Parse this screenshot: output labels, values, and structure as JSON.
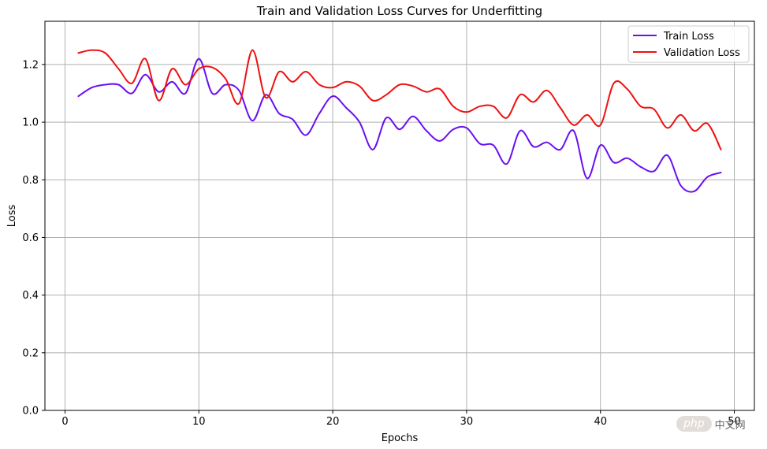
{
  "chart_data": {
    "type": "line",
    "title": "Train and Validation Loss Curves for Underfitting",
    "xlabel": "Epochs",
    "ylabel": "Loss",
    "xlim": [
      -1.5,
      51.5
    ],
    "ylim": [
      0,
      1.35
    ],
    "xticks": [
      0,
      10,
      20,
      30,
      40,
      50
    ],
    "yticks": [
      0.0,
      0.2,
      0.4,
      0.6,
      0.8,
      1.0,
      1.2
    ],
    "xtick_labels": [
      "0",
      "10",
      "20",
      "30",
      "40",
      "50"
    ],
    "ytick_labels": [
      "0.0",
      "0.2",
      "0.4",
      "0.6",
      "0.8",
      "1.0",
      "1.2"
    ],
    "grid": true,
    "legend_position": "top-right",
    "series": [
      {
        "name": "Train Loss",
        "color": "#6a0ff0",
        "x": [
          1,
          2,
          3,
          4,
          5,
          6,
          7,
          8,
          9,
          10,
          11,
          12,
          13,
          14,
          15,
          16,
          17,
          18,
          19,
          20,
          21,
          22,
          23,
          24,
          25,
          26,
          27,
          28,
          29,
          30,
          31,
          32,
          33,
          34,
          35,
          36,
          37,
          38,
          39,
          40,
          41,
          42,
          43,
          44,
          45,
          46,
          47,
          48,
          49
        ],
        "values": [
          1.09,
          1.12,
          1.13,
          1.13,
          1.1,
          1.165,
          1.105,
          1.14,
          1.1,
          1.22,
          1.1,
          1.13,
          1.11,
          1.005,
          1.095,
          1.03,
          1.01,
          0.955,
          1.03,
          1.09,
          1.05,
          1.0,
          0.905,
          1.015,
          0.975,
          1.02,
          0.97,
          0.935,
          0.975,
          0.98,
          0.925,
          0.92,
          0.855,
          0.97,
          0.915,
          0.93,
          0.905,
          0.97,
          0.805,
          0.92,
          0.86,
          0.875,
          0.845,
          0.83,
          0.885,
          0.78,
          0.76,
          0.81,
          0.825
        ]
      },
      {
        "name": "Validation Loss",
        "color": "#ee1111",
        "x": [
          1,
          2,
          3,
          4,
          5,
          6,
          7,
          8,
          9,
          10,
          11,
          12,
          13,
          14,
          15,
          16,
          17,
          18,
          19,
          20,
          21,
          22,
          23,
          24,
          25,
          26,
          27,
          28,
          29,
          30,
          31,
          32,
          33,
          34,
          35,
          36,
          37,
          38,
          39,
          40,
          41,
          42,
          43,
          44,
          45,
          46,
          47,
          48,
          49
        ],
        "values": [
          1.24,
          1.25,
          1.24,
          1.185,
          1.135,
          1.22,
          1.075,
          1.185,
          1.13,
          1.185,
          1.19,
          1.15,
          1.065,
          1.25,
          1.085,
          1.175,
          1.14,
          1.175,
          1.13,
          1.12,
          1.14,
          1.125,
          1.075,
          1.095,
          1.13,
          1.125,
          1.105,
          1.115,
          1.055,
          1.035,
          1.055,
          1.055,
          1.015,
          1.095,
          1.07,
          1.11,
          1.05,
          0.99,
          1.025,
          0.99,
          1.135,
          1.115,
          1.055,
          1.045,
          0.98,
          1.025,
          0.97,
          0.995,
          0.905
        ]
      }
    ]
  },
  "watermark": {
    "badge": "php",
    "text": "中文网"
  }
}
